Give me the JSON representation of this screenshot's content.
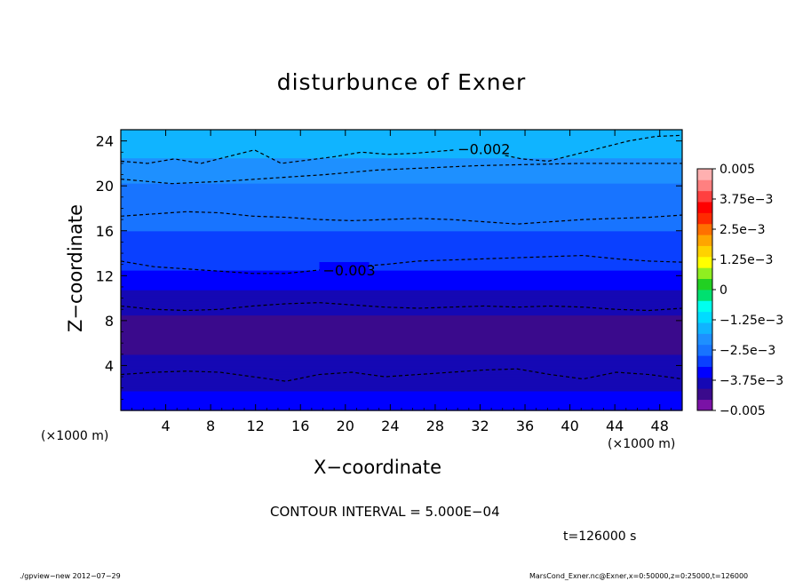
{
  "chart_data": {
    "type": "heatmap",
    "title": "disturbunce of Exner",
    "xlabel": "X−coordinate",
    "ylabel": "Z−coordinate",
    "x_unit": "(×1000 m)",
    "y_unit": "(×1000 m)",
    "x_ticks": [
      4,
      8,
      12,
      16,
      20,
      24,
      28,
      32,
      36,
      40,
      44,
      48
    ],
    "y_ticks": [
      4,
      8,
      12,
      16,
      20,
      24
    ],
    "xlim": [
      0,
      50
    ],
    "ylim": [
      0,
      25
    ],
    "contour_interval_text": "CONTOUR INTERVAL = 5.000E−04",
    "time_text": "t=126000 s",
    "colorbar": {
      "labels": [
        "0.005",
        "3.75e−3",
        "2.5e−3",
        "1.25e−3",
        "0",
        "−1.25e−3",
        "−2.5e−3",
        "−3.75e−3",
        "−0.005"
      ],
      "range": [
        -0.005,
        0.005
      ],
      "colors": [
        "#7a12a6",
        "#3a0a8c",
        "#1508b4",
        "#0000ff",
        "#0a40ff",
        "#1874ff",
        "#1e90ff",
        "#10b4ff",
        "#00dcff",
        "#00ffee",
        "#00e070",
        "#22d022",
        "#90ee20",
        "#ffff00",
        "#ffd200",
        "#ffa500",
        "#ff7000",
        "#ff2a00",
        "#ff0000",
        "#ff4040",
        "#ff8080",
        "#ffb0b0"
      ]
    },
    "profile": {
      "z": [
        0,
        2,
        3.2,
        5,
        7,
        8.5,
        9.5,
        11,
        13.3,
        15.5,
        17.3,
        19.5,
        20.5,
        22,
        23.5,
        25
      ],
      "value": [
        -0.0035,
        -0.00365,
        -0.0039,
        -0.0041,
        -0.0042,
        -0.0041,
        -0.0039,
        -0.0036,
        -0.003,
        -0.0028,
        -0.0025,
        -0.0024,
        -0.0022,
        -0.0019,
        -0.0017,
        -0.0016
      ]
    },
    "contours": [
      {
        "level": "−0.002",
        "label": "−0.002",
        "label_x": 30,
        "z": [
          22.2,
          22.0,
          22.4,
          22.0,
          22.6,
          23.2,
          22.0,
          22.3,
          22.6,
          23.0,
          22.8,
          22.9,
          23.1,
          23.3,
          22.9,
          22.4,
          22.2,
          22.8,
          23.4,
          24.0,
          24.4,
          24.5
        ]
      },
      {
        "level": "−0.002",
        "label": "",
        "z": [
          20.6,
          20.2,
          20.4,
          20.7,
          21.0,
          21.4,
          21.6,
          21.8,
          21.9,
          22.0,
          22.0,
          22.0
        ]
      },
      {
        "level": "−0.0025",
        "label": "",
        "z": [
          17.3,
          17.5,
          17.7,
          17.6,
          17.3,
          17.2,
          17.0,
          16.9,
          17.0,
          17.1,
          17.0,
          16.8,
          16.6,
          16.8,
          17.0,
          17.1,
          17.2,
          17.4
        ]
      },
      {
        "level": "−0.003",
        "label": "−0.003",
        "label_x": 18,
        "z": [
          13.3,
          12.8,
          12.6,
          12.4,
          12.2,
          12.2,
          12.5,
          12.8,
          13.0,
          13.3,
          13.4,
          13.5,
          13.6,
          13.7,
          13.8,
          13.5,
          13.3,
          13.2
        ]
      },
      {
        "level": "−0.0035",
        "label": "",
        "z": [
          9.3,
          9.0,
          8.9,
          9.0,
          9.3,
          9.5,
          9.6,
          9.4,
          9.2,
          9.1,
          9.2,
          9.3,
          9.2,
          9.3,
          9.2,
          9.0,
          8.9,
          9.1
        ]
      },
      {
        "level": "−0.0035",
        "label": "",
        "z": [
          3.2,
          3.4,
          3.5,
          3.4,
          3.0,
          2.6,
          3.2,
          3.4,
          3.0,
          3.2,
          3.4,
          3.6,
          3.7,
          3.2,
          2.8,
          3.4,
          3.2,
          2.8
        ]
      }
    ]
  },
  "footer": {
    "left": "./gpview−new   2012−07−29",
    "right": "MarsCond_Exner.nc@Exner,x=0:50000,z=0:25000,t=126000"
  }
}
